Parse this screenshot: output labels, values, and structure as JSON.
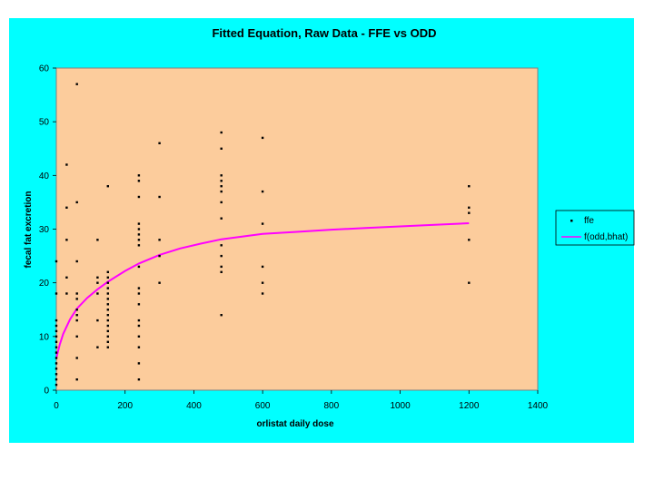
{
  "chart_data": {
    "type": "scatter",
    "title": "Fitted Equation, Raw Data - FFE vs ODD",
    "xlabel": "orlistat daily dose",
    "ylabel": "fecal fat excretion",
    "xlim": [
      0,
      1400
    ],
    "ylim": [
      0,
      60
    ],
    "x_ticks": [
      "0",
      "200",
      "400",
      "600",
      "800",
      "1000",
      "1200",
      "1400"
    ],
    "y_ticks": [
      "0",
      "10",
      "20",
      "30",
      "40",
      "50",
      "60"
    ],
    "grid": false,
    "legend_position": "right",
    "colors": {
      "outer_background": "#00ffff",
      "plot_background": "#fccc9c",
      "points": "#000000",
      "fit_line": "#ff00ff"
    },
    "series": [
      {
        "name": "ffe",
        "kind": "scatter",
        "points": [
          [
            0,
            1
          ],
          [
            0,
            2
          ],
          [
            0,
            3
          ],
          [
            0,
            4
          ],
          [
            0,
            5
          ],
          [
            0,
            6
          ],
          [
            0,
            7
          ],
          [
            0,
            8
          ],
          [
            0,
            9
          ],
          [
            0,
            10
          ],
          [
            0,
            11
          ],
          [
            0,
            12
          ],
          [
            0,
            13
          ],
          [
            0,
            18
          ],
          [
            0,
            24
          ],
          [
            30,
            18
          ],
          [
            30,
            21
          ],
          [
            30,
            28
          ],
          [
            30,
            34
          ],
          [
            30,
            42
          ],
          [
            60,
            2
          ],
          [
            60,
            6
          ],
          [
            60,
            10
          ],
          [
            60,
            13
          ],
          [
            60,
            14
          ],
          [
            60,
            15
          ],
          [
            60,
            17
          ],
          [
            60,
            18
          ],
          [
            60,
            24
          ],
          [
            60,
            35
          ],
          [
            60,
            57
          ],
          [
            120,
            8
          ],
          [
            120,
            13
          ],
          [
            120,
            18
          ],
          [
            120,
            20
          ],
          [
            120,
            21
          ],
          [
            120,
            28
          ],
          [
            150,
            8
          ],
          [
            150,
            9
          ],
          [
            150,
            10
          ],
          [
            150,
            11
          ],
          [
            150,
            12
          ],
          [
            150,
            13
          ],
          [
            150,
            14
          ],
          [
            150,
            15
          ],
          [
            150,
            16
          ],
          [
            150,
            17
          ],
          [
            150,
            18
          ],
          [
            150,
            19
          ],
          [
            150,
            20
          ],
          [
            150,
            21
          ],
          [
            150,
            22
          ],
          [
            150,
            38
          ],
          [
            240,
            2
          ],
          [
            240,
            5
          ],
          [
            240,
            8
          ],
          [
            240,
            10
          ],
          [
            240,
            12
          ],
          [
            240,
            13
          ],
          [
            240,
            16
          ],
          [
            240,
            18
          ],
          [
            240,
            19
          ],
          [
            240,
            23
          ],
          [
            240,
            27
          ],
          [
            240,
            28
          ],
          [
            240,
            29
          ],
          [
            240,
            30
          ],
          [
            240,
            31
          ],
          [
            240,
            36
          ],
          [
            240,
            39
          ],
          [
            240,
            40
          ],
          [
            300,
            20
          ],
          [
            300,
            25
          ],
          [
            300,
            28
          ],
          [
            300,
            36
          ],
          [
            300,
            46
          ],
          [
            480,
            14
          ],
          [
            480,
            22
          ],
          [
            480,
            23
          ],
          [
            480,
            25
          ],
          [
            480,
            27
          ],
          [
            480,
            32
          ],
          [
            480,
            35
          ],
          [
            480,
            37
          ],
          [
            480,
            38
          ],
          [
            480,
            39
          ],
          [
            480,
            40
          ],
          [
            480,
            45
          ],
          [
            480,
            48
          ],
          [
            600,
            18
          ],
          [
            600,
            20
          ],
          [
            600,
            23
          ],
          [
            600,
            31
          ],
          [
            600,
            37
          ],
          [
            600,
            47
          ],
          [
            1200,
            20
          ],
          [
            1200,
            28
          ],
          [
            1200,
            33
          ],
          [
            1200,
            34
          ],
          [
            1200,
            38
          ]
        ]
      },
      {
        "name": "f(odd,bhat)",
        "kind": "line",
        "points": [
          [
            0,
            6
          ],
          [
            10,
            8.5
          ],
          [
            20,
            10.5
          ],
          [
            40,
            13.2
          ],
          [
            60,
            15.2
          ],
          [
            90,
            17.2
          ],
          [
            120,
            18.8
          ],
          [
            150,
            20.2
          ],
          [
            200,
            22.2
          ],
          [
            240,
            23.6
          ],
          [
            300,
            25.2
          ],
          [
            360,
            26.4
          ],
          [
            420,
            27.3
          ],
          [
            480,
            28.1
          ],
          [
            540,
            28.6
          ],
          [
            600,
            29.1
          ],
          [
            700,
            29.5
          ],
          [
            800,
            29.9
          ],
          [
            900,
            30.2
          ],
          [
            1000,
            30.5
          ],
          [
            1100,
            30.8
          ],
          [
            1200,
            31.1
          ]
        ]
      }
    ]
  }
}
